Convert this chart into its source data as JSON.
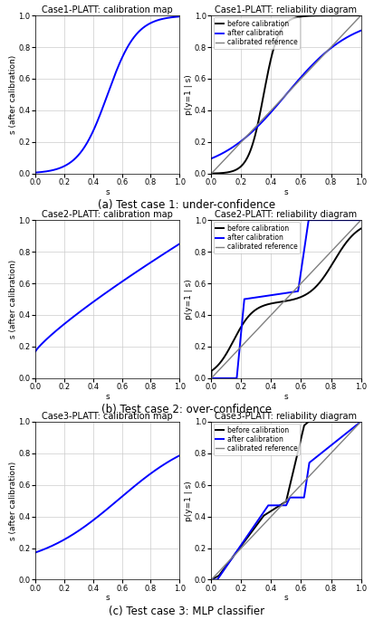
{
  "titles_cal": [
    "Case1-PLATT: calibration map",
    "Case2-PLATT: calibration map",
    "Case3-PLATT: calibration map"
  ],
  "titles_rel": [
    "Case1-PLATT: reliability diagram",
    "Case2-PLATT: reliability diagram",
    "Case3-PLATT: reliability diagram"
  ],
  "captions": [
    "(a) Test case 1: under-confidence",
    "(b) Test case 2: over-confidence",
    "(c) Test case 3: MLP classifier"
  ],
  "xlabel": "s",
  "ylabel_cal": "s (after calibration)",
  "ylabel_rel": "p(y=1 | s)",
  "legend_before": "before calibration",
  "legend_after": "after calibration",
  "legend_ref": "calibrated reference",
  "color_before": "black",
  "color_after": "blue",
  "color_ref": "gray",
  "lw": 1.4,
  "lw_ref": 1.0,
  "tick_fs": 6,
  "label_fs": 6.5,
  "title_fs": 7,
  "legend_fs": 5.5,
  "caption_fs": 8.5,
  "grid_color": "#cccccc",
  "grid_lw": 0.5
}
